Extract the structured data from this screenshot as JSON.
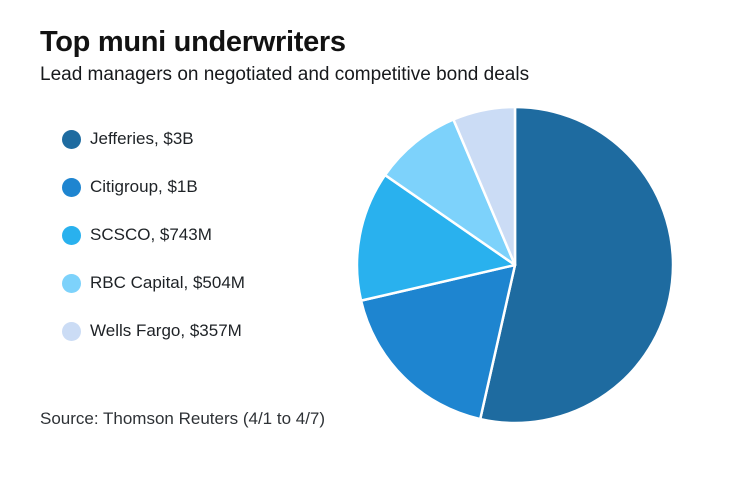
{
  "header": {
    "title": "Top muni underwriters",
    "subtitle": "Lead managers on negotiated and competitive bond deals"
  },
  "legend": {
    "position": "left",
    "items": [
      {
        "label": "Jefferies, $3B",
        "color": "#1e6ba0"
      },
      {
        "label": "Citigroup, $1B",
        "color": "#1e85d0"
      },
      {
        "label": "SCSCO, $743M",
        "color": "#29b1ee"
      },
      {
        "label": "RBC Capital, $504M",
        "color": "#7dd2fb"
      },
      {
        "label": "Wells Fargo, $357M",
        "color": "#cbdcf5"
      }
    ]
  },
  "chart_data": {
    "type": "pie",
    "title": "Top muni underwriters",
    "subtitle": "Lead managers on negotiated and competitive bond deals",
    "slices": [
      {
        "label": "Jefferies",
        "display_value": "$3B",
        "value_millions": 3000,
        "percent": 53.5,
        "color": "#1e6ba0"
      },
      {
        "label": "Citigroup",
        "display_value": "$1B",
        "value_millions": 1000,
        "percent": 17.8,
        "color": "#1e85d0"
      },
      {
        "label": "SCSCO",
        "display_value": "$743M",
        "value_millions": 743,
        "percent": 13.3,
        "color": "#29b1ee"
      },
      {
        "label": "RBC Capital",
        "display_value": "$504M",
        "value_millions": 504,
        "percent": 9.0,
        "color": "#7dd2fb"
      },
      {
        "label": "Wells Fargo",
        "display_value": "$357M",
        "value_millions": 357,
        "percent": 6.4,
        "color": "#cbdcf5"
      }
    ],
    "start_angle_deg": 0,
    "direction": "clockwise",
    "slice_border_color": "#ffffff",
    "legend_position": "left"
  },
  "footer": {
    "source": "Source: Thomson Reuters (4/1 to 4/7)"
  }
}
